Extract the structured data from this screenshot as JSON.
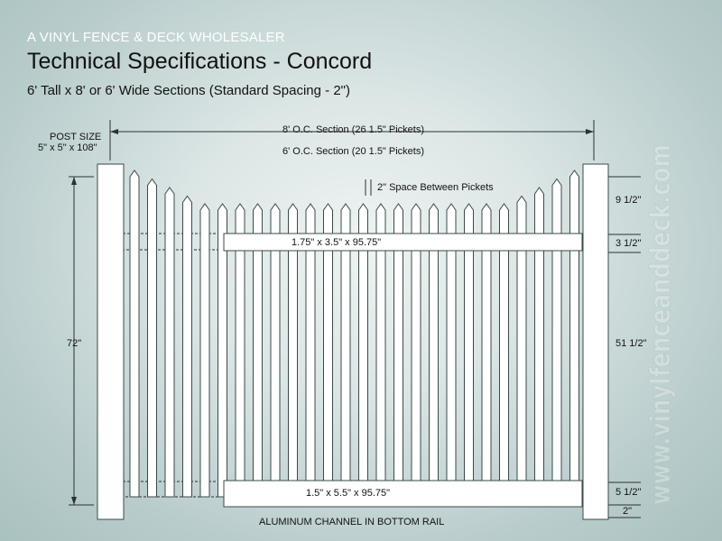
{
  "header": {
    "tagline": "A VINYL FENCE & DECK WHOLESALER",
    "title": "Technical Specifications - Concord",
    "subtitle": "6' Tall x 8' or 6' Wide Sections (Standard Spacing - 2\")"
  },
  "labels": {
    "post_size_title": "POST SIZE",
    "post_size_value": "5\" x 5\" x 108\"",
    "section_8": "8' O.C. Section (26  1.5\" Pickets)",
    "section_6": "6' O.C. Section (20  1.5\" Pickets)",
    "picket_spacing": "2\" Space Between Pickets",
    "top_rail": "1.75\" x 3.5\" x 95.75\"",
    "bottom_rail": "1.5\" x 5.5\" x 95.75\"",
    "bottom_note": "ALUMINUM CHANNEL IN BOTTOM RAIL",
    "height_total": "72\""
  },
  "dimensions_right": {
    "top_gap": "9 1/2\"",
    "top_rail_height": "3 1/2\"",
    "middle_span": "51 1/2\"",
    "bottom_rail_height": "5 1/2\"",
    "ground_gap": "2\""
  },
  "watermark": "www.vinylfenceanddeck.com",
  "colors": {
    "picket": "#ffffff",
    "outline": "#3c4848",
    "background": "#c9d9d8"
  }
}
